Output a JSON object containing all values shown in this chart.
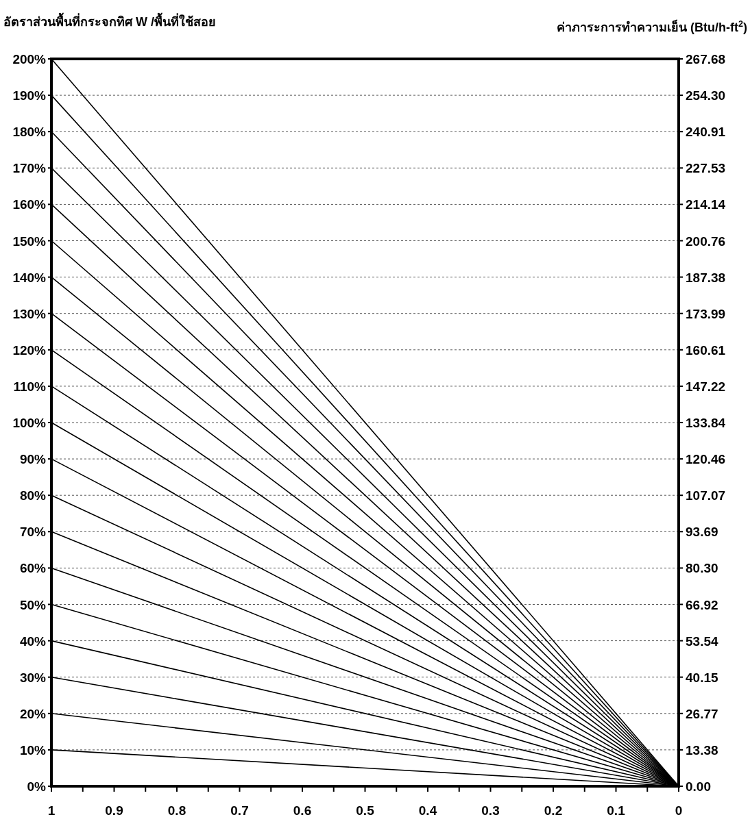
{
  "chart_data": {
    "type": "line",
    "ylabel": "อัตราส่วนพื้นที่กระจกทิศ W /พื้นที่ใช้สอย",
    "y2label": "ค่าภาระการทำความเย็น (Btu/h-ft$^{2}$)",
    "grid": "y",
    "x": [
      1,
      0
    ],
    "xlim": [
      1,
      0
    ],
    "ylim": [
      0,
      200
    ],
    "y2lim": [
      0,
      267.68
    ],
    "xticks": [
      1,
      {
        "value": 0.95,
        "label": null
      },
      0.9,
      {
        "value": 0.85,
        "label": null
      },
      0.8,
      {
        "value": 0.75,
        "label": null
      },
      0.7,
      {
        "value": 0.65,
        "label": null
      },
      0.6,
      {
        "value": 0.55,
        "label": null
      },
      0.5,
      {
        "value": 0.45,
        "label": null
      },
      0.4,
      {
        "value": 0.35,
        "label": null
      },
      0.3,
      {
        "value": 0.25,
        "label": null
      },
      0.2,
      {
        "value": 0.15,
        "label": null
      },
      0.1,
      {
        "value": 0.05,
        "label": null
      },
      0
    ],
    "yticks": [
      {
        "value": 0,
        "label": "0%"
      },
      {
        "value": 10,
        "label": "10%"
      },
      {
        "value": 20,
        "label": "20%"
      },
      {
        "value": 30,
        "label": "30%"
      },
      {
        "value": 40,
        "label": "40%"
      },
      {
        "value": 50,
        "label": "50%"
      },
      {
        "value": 60,
        "label": "60%"
      },
      {
        "value": 70,
        "label": "70%"
      },
      {
        "value": 80,
        "label": "80%"
      },
      {
        "value": 90,
        "label": "90%"
      },
      {
        "value": 100,
        "label": "100%"
      },
      {
        "value": 110,
        "label": "110%"
      },
      {
        "value": 120,
        "label": "120%"
      },
      {
        "value": 130,
        "label": "130%"
      },
      {
        "value": 140,
        "label": "140%"
      },
      {
        "value": 150,
        "label": "150%"
      },
      {
        "value": 160,
        "label": "160%"
      },
      {
        "value": 170,
        "label": "170%"
      },
      {
        "value": 180,
        "label": "180%"
      },
      {
        "value": 190,
        "label": "190%"
      },
      {
        "value": 200,
        "label": "200%"
      }
    ],
    "y2ticks": [
      {
        "value": 0,
        "label": "0.00"
      },
      {
        "value": 13.38,
        "label": "13.38"
      },
      {
        "value": 26.77,
        "label": "26.77"
      },
      {
        "value": 40.15,
        "label": "40.15"
      },
      {
        "value": 53.54,
        "label": "53.54"
      },
      {
        "value": 66.92,
        "label": "66.92"
      },
      {
        "value": 80.3,
        "label": "80.30"
      },
      {
        "value": 93.69,
        "label": "93.69"
      },
      {
        "value": 107.07,
        "label": "107.07"
      },
      {
        "value": 120.46,
        "label": "120.46"
      },
      {
        "value": 133.84,
        "label": "133.84"
      },
      {
        "value": 147.22,
        "label": "147.22"
      },
      {
        "value": 160.61,
        "label": "160.61"
      },
      {
        "value": 173.99,
        "label": "173.99"
      },
      {
        "value": 187.38,
        "label": "187.38"
      },
      {
        "value": 200.76,
        "label": "200.76"
      },
      {
        "value": 214.14,
        "label": "214.14"
      },
      {
        "value": 227.53,
        "label": "227.53"
      },
      {
        "value": 240.91,
        "label": "240.91"
      },
      {
        "value": 254.3,
        "label": "254.30"
      },
      {
        "value": 267.68,
        "label": "267.68"
      }
    ],
    "series": [
      {
        "color": "#000000",
        "values": [
          10,
          0
        ]
      },
      {
        "color": "#000000",
        "values": [
          20,
          0
        ]
      },
      {
        "color": "#000000",
        "values": [
          30,
          0
        ]
      },
      {
        "color": "#000000",
        "values": [
          40,
          0
        ]
      },
      {
        "color": "#000000",
        "values": [
          50,
          0
        ]
      },
      {
        "color": "#000000",
        "values": [
          60,
          0
        ]
      },
      {
        "color": "#000000",
        "values": [
          70,
          0
        ]
      },
      {
        "color": "#000000",
        "values": [
          80,
          0
        ]
      },
      {
        "color": "#000000",
        "values": [
          90,
          0
        ]
      },
      {
        "color": "#000000",
        "values": [
          100,
          0
        ]
      },
      {
        "color": "#000000",
        "values": [
          110,
          0
        ]
      },
      {
        "color": "#000000",
        "values": [
          120,
          0
        ]
      },
      {
        "color": "#000000",
        "values": [
          130,
          0
        ]
      },
      {
        "color": "#000000",
        "values": [
          140,
          0
        ]
      },
      {
        "color": "#000000",
        "values": [
          150,
          0
        ]
      },
      {
        "color": "#000000",
        "values": [
          160,
          0
        ]
      },
      {
        "color": "#000000",
        "values": [
          170,
          0
        ]
      },
      {
        "color": "#000000",
        "values": [
          180,
          0
        ]
      },
      {
        "color": "#000000",
        "values": [
          190,
          0
        ]
      },
      {
        "color": "#000000",
        "values": [
          200,
          0
        ]
      }
    ]
  }
}
